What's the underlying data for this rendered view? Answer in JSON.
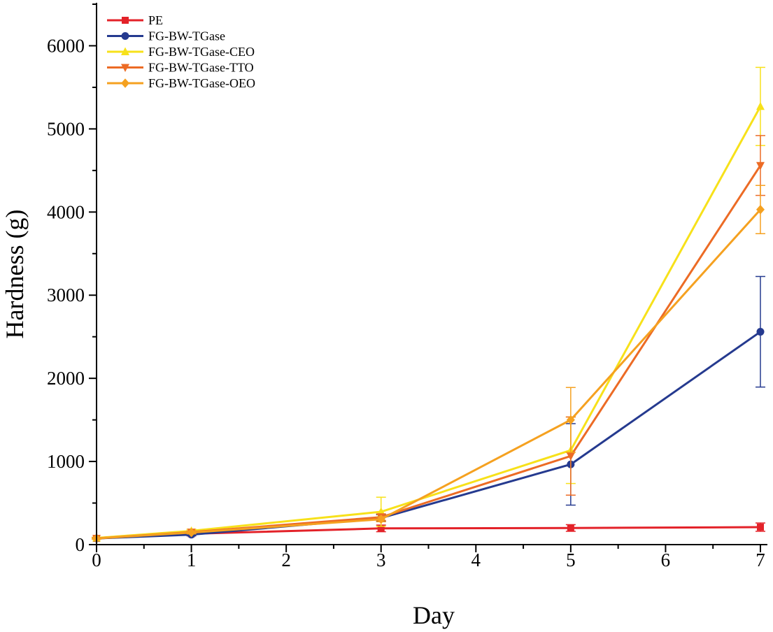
{
  "chart_data": {
    "type": "line",
    "title": "",
    "xlabel": "Day",
    "ylabel": "Hardness (g)",
    "xlim": [
      0,
      7
    ],
    "ylim": [
      0,
      6500
    ],
    "x_ticks": [
      0,
      1,
      2,
      3,
      4,
      5,
      6,
      7
    ],
    "y_ticks": [
      0,
      1000,
      2000,
      3000,
      4000,
      5000,
      6000
    ],
    "x_tick_labels": [
      "0",
      "1",
      "2",
      "3",
      "4",
      "5",
      "6",
      "7"
    ],
    "y_tick_labels": [
      "0",
      "1000",
      "2000",
      "3000",
      "4000",
      "5000",
      "6000"
    ],
    "grid": false,
    "legend_position": "top-left",
    "series": [
      {
        "name": "PE",
        "color": "#e32229",
        "marker": "square",
        "x": [
          0,
          1,
          3,
          5,
          7
        ],
        "values": [
          75,
          130,
          195,
          200,
          210
        ],
        "errors": [
          10,
          15,
          40,
          40,
          50
        ]
      },
      {
        "name": "FG-BW-TGase",
        "color": "#253a8f",
        "marker": "circle",
        "x": [
          0,
          1,
          3,
          5,
          7
        ],
        "values": [
          75,
          120,
          320,
          965,
          2560
        ],
        "errors": [
          10,
          15,
          40,
          490,
          665
        ]
      },
      {
        "name": "FG-BW-TGase-CEO",
        "color": "#f7e11a",
        "marker": "triangle-up",
        "x": [
          0,
          1,
          3,
          5,
          7
        ],
        "values": [
          80,
          165,
          395,
          1135,
          5270
        ],
        "errors": [
          10,
          20,
          175,
          400,
          470
        ]
      },
      {
        "name": "FG-BW-TGase-TTO",
        "color": "#ec6b25",
        "marker": "triangle-down",
        "x": [
          0,
          1,
          3,
          5,
          7
        ],
        "values": [
          75,
          150,
          330,
          1065,
          4560
        ],
        "errors": [
          10,
          15,
          40,
          470,
          360
        ]
      },
      {
        "name": "FG-BW-TGase-OEO",
        "color": "#f5a120",
        "marker": "diamond",
        "x": [
          0,
          1,
          3,
          5,
          7
        ],
        "values": [
          75,
          145,
          305,
          1500,
          4030
        ],
        "errors": [
          10,
          15,
          30,
          390,
          290
        ]
      }
    ]
  }
}
